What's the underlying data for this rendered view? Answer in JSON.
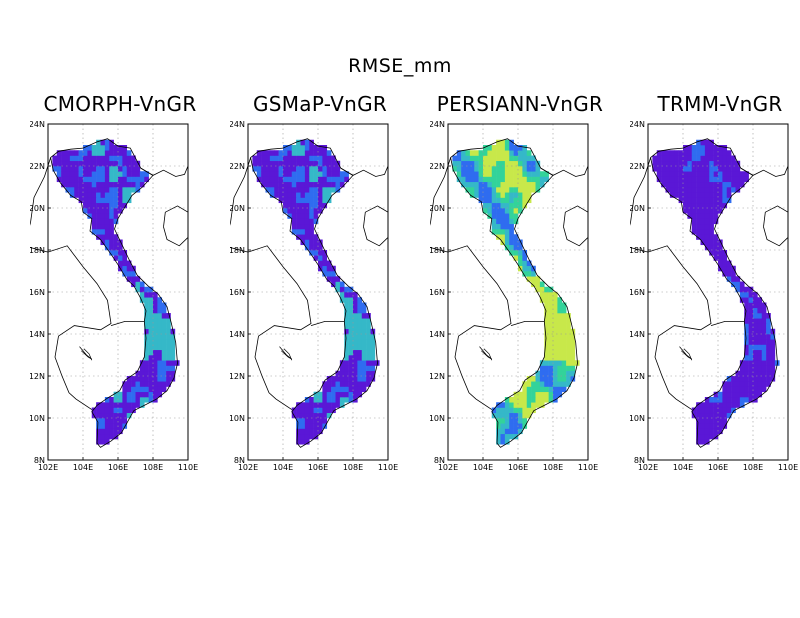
{
  "title": "RMSE_mm",
  "panels": [
    {
      "title": "CMORPH-VnGR",
      "scheme": "low"
    },
    {
      "title": "GSMaP-VnGR",
      "scheme": "low"
    },
    {
      "title": "PERSIANN-VnGR",
      "scheme": "high"
    },
    {
      "title": "TRMM-VnGR",
      "scheme": "lowest"
    }
  ],
  "axes": {
    "lon_ticks": [
      "102E",
      "104E",
      "106E",
      "108E",
      "110E"
    ],
    "lat_ticks": [
      "8N",
      "10N",
      "12N",
      "14N",
      "16N",
      "18N",
      "20N",
      "22N",
      "24N"
    ],
    "lon_range": [
      102,
      110
    ],
    "lat_range": [
      8,
      24
    ],
    "grid": true
  },
  "colors": {
    "low": "#5a17d6",
    "mid_low": "#2f6cf0",
    "mid": "#35b8c8",
    "mid_high": "#33d39a",
    "high": "#c8e84a"
  }
}
